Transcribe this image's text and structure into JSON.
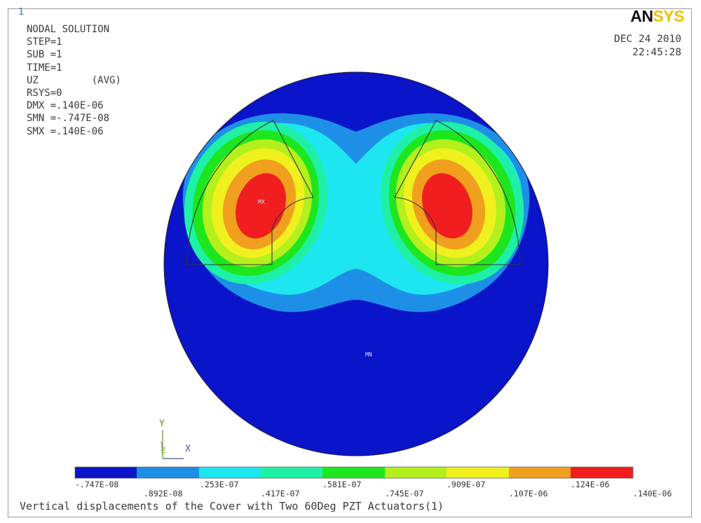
{
  "window_number": "1",
  "logo": {
    "part1": "AN",
    "part2": "SYS"
  },
  "info_lines": [
    "NODAL SOLUTION",
    "",
    "STEP=1",
    "SUB =1",
    "TIME=1",
    "UZ         (AVG)",
    "RSYS=0",
    "DMX =.140E-06",
    "SMN =-.747E-08",
    "SMX =.140E-06"
  ],
  "date": "DEC 24 2010",
  "time": "22:45:28",
  "markers": {
    "max": "MX",
    "min": "MN"
  },
  "axes": {
    "y": "Y",
    "z": "Z",
    "x": "X"
  },
  "colors": {
    "band0": "#0a14c8",
    "band1": "#1e8fe6",
    "band2": "#1ee6f0",
    "band3": "#1ef0a6",
    "band4": "#1ee61e",
    "band5": "#b4f01e",
    "band6": "#f0f01e",
    "band7": "#f0a01e",
    "band8": "#f01e1e"
  },
  "legend": {
    "labels_bottom": [
      "-.747E-08",
      ".253E-07",
      ".581E-07",
      ".909E-07",
      ".124E-06"
    ],
    "labels_top": [
      ".892E-08",
      ".417E-07",
      ".745E-07",
      ".107E-06",
      ".140E-06"
    ]
  },
  "caption": "Vertical displacements of the Cover with Two 60Deg PZT Actuators(1)"
}
